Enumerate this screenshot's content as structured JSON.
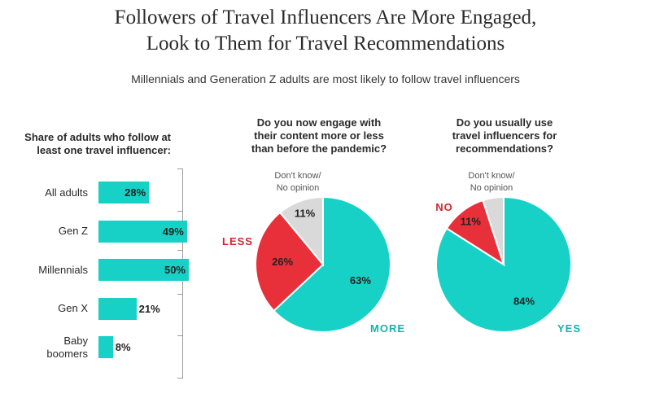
{
  "title_line1": "Followers of Travel Influencers Are More Engaged,",
  "title_line2": "Look to Them for Travel Recommendations",
  "subtitle": "Millennials and Generation Z adults are most likely to follow travel influencers",
  "colors": {
    "teal": "#17d1c6",
    "red": "#e8303a",
    "gray": "#d9d9d9",
    "red_text": "#d8232e",
    "teal_text": "#14b4ab"
  },
  "chart_data": [
    {
      "type": "bar",
      "orientation": "horizontal",
      "heading": [
        "Share of adults who follow at",
        "least one travel influencer:"
      ],
      "categories": [
        [
          "All adults"
        ],
        [
          "Gen Z"
        ],
        [
          "Millennials"
        ],
        [
          "Gen X"
        ],
        [
          "Baby",
          "boomers"
        ]
      ],
      "values": [
        28,
        49,
        50,
        21,
        8
      ],
      "value_labels": [
        "28%",
        "49%",
        "50%",
        "21%",
        "8%"
      ],
      "unit": "%"
    },
    {
      "type": "pie",
      "heading": [
        "Do you now engage with",
        "their content more or less",
        "than before the pandemic?"
      ],
      "slices": [
        {
          "name": "MORE",
          "value": 63,
          "label": "63%",
          "color": "#17d1c6"
        },
        {
          "name": "LESS",
          "value": 26,
          "label": "26%",
          "color": "#e8303a"
        },
        {
          "name": "Don't know/ No opinion",
          "value": 11,
          "label": "11%",
          "color": "#d9d9d9"
        }
      ],
      "dont_know_label": [
        "Don't know/",
        "No opinion"
      ]
    },
    {
      "type": "pie",
      "heading": [
        "Do you usually use",
        "travel influencers for",
        "recommendations?"
      ],
      "slices": [
        {
          "name": "YES",
          "value": 84,
          "label": "84%",
          "color": "#17d1c6"
        },
        {
          "name": "NO",
          "value": 11,
          "label": "11%",
          "color": "#e8303a"
        },
        {
          "name": "Don't know/ No opinion",
          "value": 5,
          "label": "",
          "color": "#d9d9d9"
        }
      ],
      "dont_know_label": [
        "Don't know/",
        "No opinion"
      ]
    }
  ]
}
